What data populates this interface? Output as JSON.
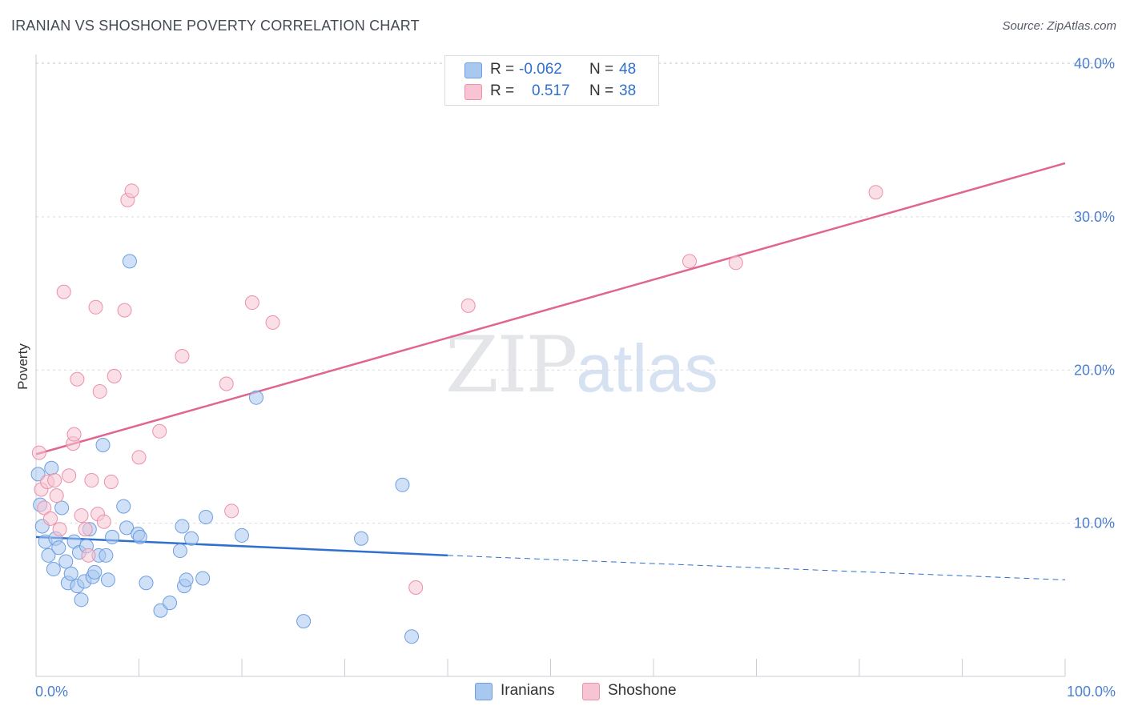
{
  "header": {
    "title": "IRANIAN VS SHOSHONE POVERTY CORRELATION CHART",
    "source": "Source: ZipAtlas.com"
  },
  "watermark": {
    "zip": "ZIP",
    "atlas": "atlas"
  },
  "legend": {
    "rows": [
      {
        "r_label": "R =",
        "r_value": "-0.062",
        "n_label": "N =",
        "n_value": "48",
        "color": "#a9c8f0",
        "border": "#6d9ee0"
      },
      {
        "r_label": "R =",
        "r_value": "0.517",
        "n_label": "N =",
        "n_value": "38",
        "color": "#f7c4d3",
        "border": "#ec8fab"
      }
    ]
  },
  "bottom_legend": {
    "items": [
      {
        "label": "Iranians",
        "color": "#a9c8f0",
        "border": "#6d9ee0"
      },
      {
        "label": "Shoshone",
        "color": "#f7c4d3",
        "border": "#ec8fab"
      }
    ]
  },
  "chart_data": {
    "type": "scatter",
    "title": "IRANIAN VS SHOSHONE POVERTY CORRELATION CHART",
    "xlabel": "",
    "ylabel": "Poverty",
    "xlim": [
      0,
      100
    ],
    "ylim": [
      0,
      40
    ],
    "x_tick_labels": [
      "0.0%",
      "100.0%"
    ],
    "y_ticks": [
      10,
      20,
      30,
      40
    ],
    "y_tick_labels": [
      "10.0%",
      "20.0%",
      "30.0%",
      "40.0%"
    ],
    "grid": "horizontal dashed",
    "legend_position": "top-center",
    "series": [
      {
        "name": "Iranians",
        "color": "#6d9ee0",
        "fill": "#a9c8f0",
        "trend": {
          "x": [
            0,
            40
          ],
          "y": [
            9.1,
            7.9
          ],
          "dashed_to": [
            100,
            6.3
          ],
          "color": "#2f6fcf"
        },
        "points": [
          [
            0.2,
            13.2
          ],
          [
            0.4,
            11.2
          ],
          [
            0.6,
            9.8
          ],
          [
            0.9,
            8.8
          ],
          [
            1.2,
            7.9
          ],
          [
            1.5,
            13.6
          ],
          [
            1.7,
            7.0
          ],
          [
            1.9,
            9.0
          ],
          [
            2.2,
            8.4
          ],
          [
            2.5,
            11.0
          ],
          [
            2.9,
            7.5
          ],
          [
            3.1,
            6.1
          ],
          [
            3.4,
            6.7
          ],
          [
            3.7,
            8.8
          ],
          [
            4.0,
            5.9
          ],
          [
            4.2,
            8.1
          ],
          [
            4.4,
            5.0
          ],
          [
            4.7,
            6.2
          ],
          [
            4.9,
            8.5
          ],
          [
            5.2,
            9.6
          ],
          [
            5.5,
            6.5
          ],
          [
            5.7,
            6.8
          ],
          [
            6.1,
            7.9
          ],
          [
            6.5,
            15.1
          ],
          [
            6.8,
            7.9
          ],
          [
            7.0,
            6.3
          ],
          [
            7.4,
            9.1
          ],
          [
            8.5,
            11.1
          ],
          [
            8.8,
            9.7
          ],
          [
            9.1,
            27.1
          ],
          [
            9.9,
            9.3
          ],
          [
            10.1,
            9.1
          ],
          [
            10.7,
            6.1
          ],
          [
            12.1,
            4.3
          ],
          [
            13.0,
            4.8
          ],
          [
            14.0,
            8.2
          ],
          [
            14.2,
            9.8
          ],
          [
            14.4,
            5.9
          ],
          [
            14.6,
            6.3
          ],
          [
            15.1,
            9.0
          ],
          [
            16.2,
            6.4
          ],
          [
            16.5,
            10.4
          ],
          [
            20.0,
            9.2
          ],
          [
            21.4,
            18.2
          ],
          [
            26.0,
            3.6
          ],
          [
            31.6,
            9.0
          ],
          [
            35.6,
            12.5
          ],
          [
            36.5,
            2.6
          ]
        ]
      },
      {
        "name": "Shoshone",
        "color": "#ec8fab",
        "fill": "#f7c4d3",
        "trend": {
          "x": [
            0,
            100
          ],
          "y": [
            14.5,
            33.5
          ],
          "color": "#e0668f"
        },
        "points": [
          [
            0.3,
            14.6
          ],
          [
            0.5,
            12.2
          ],
          [
            0.8,
            11.0
          ],
          [
            1.1,
            12.7
          ],
          [
            1.4,
            10.3
          ],
          [
            1.8,
            12.8
          ],
          [
            2.0,
            11.8
          ],
          [
            2.3,
            9.6
          ],
          [
            2.7,
            25.1
          ],
          [
            3.2,
            13.1
          ],
          [
            3.6,
            15.2
          ],
          [
            3.7,
            15.8
          ],
          [
            4.0,
            19.4
          ],
          [
            4.4,
            10.5
          ],
          [
            4.8,
            9.6
          ],
          [
            5.1,
            7.9
          ],
          [
            5.4,
            12.8
          ],
          [
            5.8,
            24.1
          ],
          [
            6.0,
            10.6
          ],
          [
            6.2,
            18.6
          ],
          [
            6.6,
            10.1
          ],
          [
            7.3,
            12.7
          ],
          [
            7.6,
            19.6
          ],
          [
            8.6,
            23.9
          ],
          [
            8.9,
            31.1
          ],
          [
            9.3,
            31.7
          ],
          [
            10.0,
            14.3
          ],
          [
            12.0,
            16.0
          ],
          [
            14.2,
            20.9
          ],
          [
            18.5,
            19.1
          ],
          [
            19.0,
            10.8
          ],
          [
            21.0,
            24.4
          ],
          [
            23.0,
            23.1
          ],
          [
            36.9,
            5.8
          ],
          [
            42.0,
            24.2
          ],
          [
            63.5,
            27.1
          ],
          [
            68.0,
            27.0
          ],
          [
            81.6,
            31.6
          ]
        ]
      }
    ]
  }
}
